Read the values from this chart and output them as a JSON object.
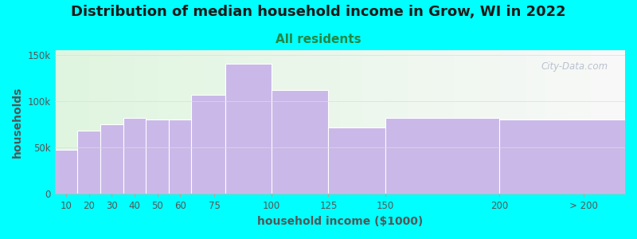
{
  "title": "Distribution of median household income in Grow, WI in 2022",
  "subtitle": "All residents",
  "xlabel": "household income ($1000)",
  "ylabel": "households",
  "bar_color": "#c9b8e8",
  "background_color": "#00ffff",
  "watermark": "City-Data.com",
  "title_fontsize": 13,
  "subtitle_fontsize": 11,
  "axis_label_fontsize": 10,
  "tick_fontsize": 8.5,
  "bar_lefts": [
    5,
    15,
    25,
    35,
    45,
    55,
    65,
    80,
    100,
    125,
    150,
    200
  ],
  "bar_rights": [
    15,
    25,
    35,
    45,
    55,
    65,
    80,
    100,
    125,
    150,
    200,
    255
  ],
  "values": [
    48000,
    68000,
    75000,
    82000,
    80000,
    80000,
    107000,
    140000,
    112000,
    72000,
    82000,
    80000
  ],
  "xtick_positions": [
    10,
    20,
    30,
    40,
    50,
    60,
    75,
    100,
    125,
    150,
    200,
    237
  ],
  "xtick_labels": [
    "10",
    "20",
    "30",
    "40",
    "50",
    "60",
    "75",
    "100",
    "125",
    "150",
    "200",
    "> 200"
  ],
  "yticks": [
    0,
    50000,
    100000,
    150000
  ],
  "ytick_labels": [
    "0",
    "50k",
    "100k",
    "150k"
  ],
  "xlim": [
    5,
    255
  ],
  "ylim": [
    0,
    155000
  ],
  "grad_left_color": "#dff5df",
  "grad_right_color": "#f8f8f8"
}
